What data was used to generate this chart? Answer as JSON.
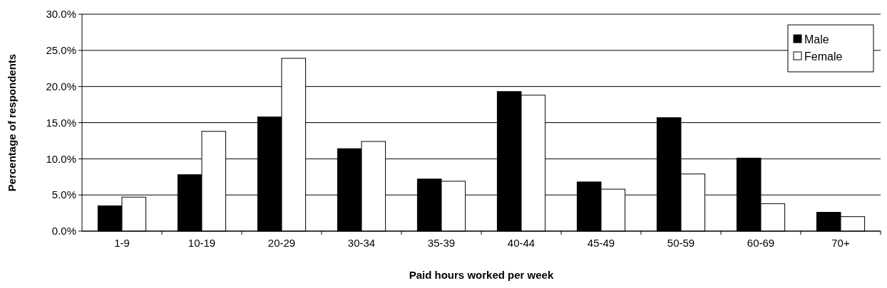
{
  "chart_data": {
    "type": "bar",
    "xlabel": "Paid hours worked per week",
    "ylabel": "Percentage of respondents",
    "categories": [
      "1-9",
      "10-19",
      "20-29",
      "30-34",
      "35-39",
      "40-44",
      "45-49",
      "50-59",
      "60-69",
      "70+"
    ],
    "series": [
      {
        "name": "Male",
        "color": "#000000",
        "values": [
          3.5,
          7.8,
          15.8,
          11.4,
          7.2,
          19.3,
          6.8,
          15.7,
          10.1,
          2.6
        ]
      },
      {
        "name": "Female",
        "color": "#ffffff",
        "values": [
          4.7,
          13.8,
          23.9,
          12.4,
          6.9,
          18.8,
          5.8,
          7.9,
          3.8,
          2.0
        ]
      }
    ],
    "ylim": [
      0,
      30
    ],
    "yticks": [
      {
        "value": 0,
        "label": "0.0%"
      },
      {
        "value": 5,
        "label": "5.0%"
      },
      {
        "value": 10,
        "label": "10.0%"
      },
      {
        "value": 15,
        "label": "15.0%"
      },
      {
        "value": 20,
        "label": "20.0%"
      },
      {
        "value": 25,
        "label": "25.0%"
      },
      {
        "value": 30,
        "label": "30.0%"
      }
    ],
    "grid": "y",
    "legend": "top right"
  }
}
